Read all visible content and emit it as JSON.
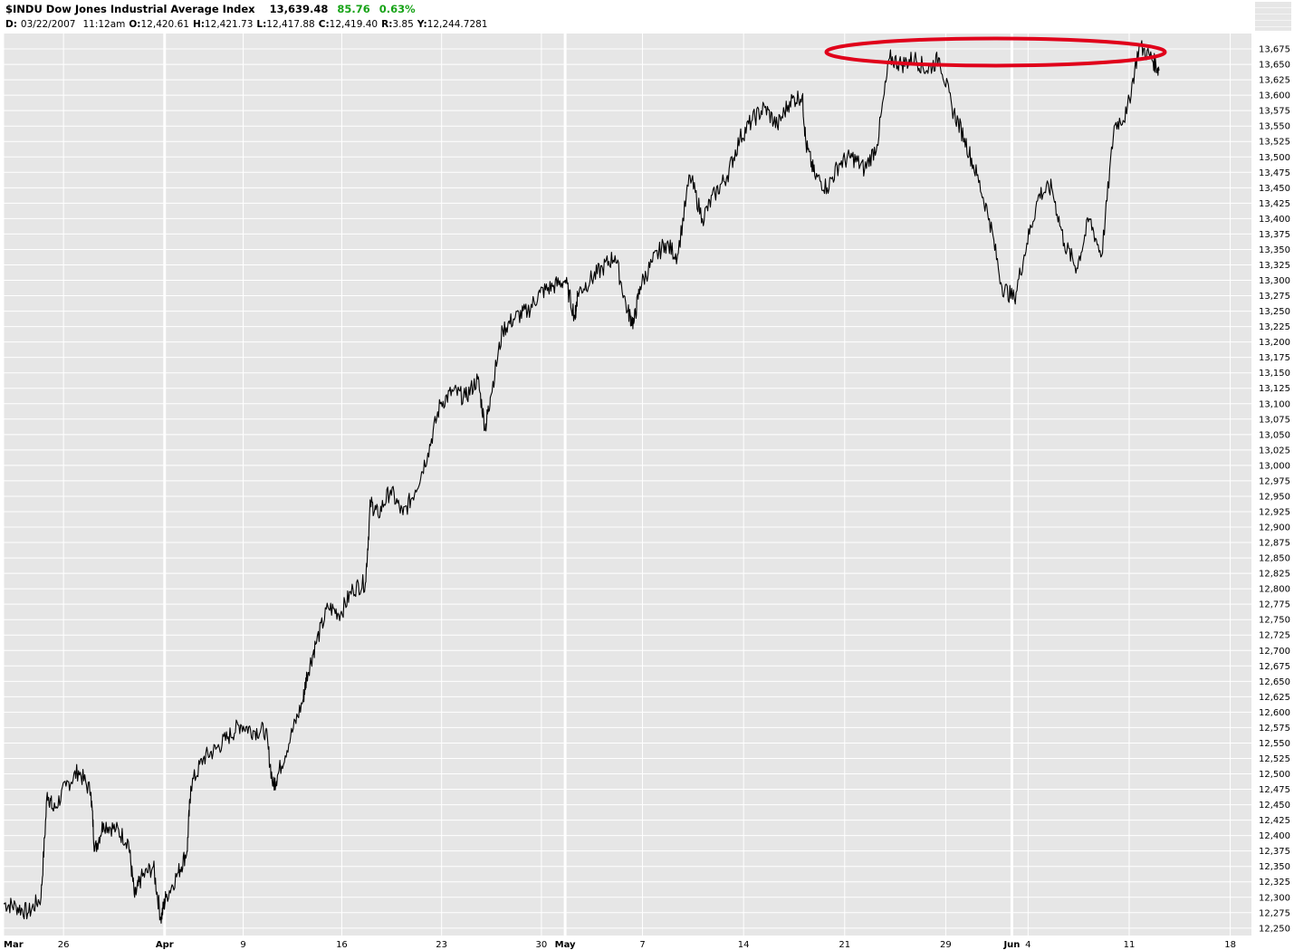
{
  "header": {
    "symbol_title": "$INDU Dow Jones Industrial Average Index",
    "last": "13,639.48",
    "change": "85.76",
    "change_pct": "0.63%",
    "change_color": "#17a317",
    "info_prefix": "D:",
    "info_date": "03/22/2007",
    "info_time": "11:12am",
    "open_label": "O:",
    "open": "12,420.61",
    "high_label": "H:",
    "high": "12,421.73",
    "low_label": "L:",
    "low": "12,417.88",
    "close_label": "C:",
    "close": "12,419.40",
    "range_label": "R:",
    "range": "3.85",
    "y_label": "Y:",
    "y": "12,244.7281"
  },
  "chart_data": {
    "type": "line",
    "series": [
      {
        "values": [
          [
            0,
            12290
          ],
          [
            1,
            12285
          ],
          [
            2,
            12275
          ],
          [
            3,
            12300
          ],
          [
            3.5,
            12470
          ],
          [
            4,
            12440
          ],
          [
            5,
            12480
          ],
          [
            6,
            12505
          ],
          [
            7,
            12470
          ],
          [
            7.3,
            12375
          ],
          [
            8,
            12420
          ],
          [
            9,
            12410
          ],
          [
            10,
            12390
          ],
          [
            10.5,
            12300
          ],
          [
            11,
            12330
          ],
          [
            12,
            12350
          ],
          [
            12.6,
            12265
          ],
          [
            13,
            12300
          ],
          [
            14,
            12340
          ],
          [
            14.7,
            12375
          ],
          [
            15,
            12480
          ],
          [
            16,
            12525
          ],
          [
            17,
            12540
          ],
          [
            18,
            12560
          ],
          [
            19,
            12580
          ],
          [
            20,
            12570
          ],
          [
            21,
            12570
          ],
          [
            21.6,
            12480
          ],
          [
            22,
            12500
          ],
          [
            23,
            12560
          ],
          [
            24,
            12620
          ],
          [
            24.3,
            12660
          ],
          [
            25,
            12710
          ],
          [
            26,
            12770
          ],
          [
            27,
            12760
          ],
          [
            28,
            12800
          ],
          [
            29,
            12810
          ],
          [
            29.4,
            12940
          ],
          [
            30,
            12920
          ],
          [
            31,
            12960
          ],
          [
            32,
            12920
          ],
          [
            33,
            12960
          ],
          [
            34,
            13020
          ],
          [
            35,
            13100
          ],
          [
            36,
            13120
          ],
          [
            37,
            13110
          ],
          [
            38,
            13140
          ],
          [
            38.6,
            13060
          ],
          [
            39,
            13110
          ],
          [
            40,
            13220
          ],
          [
            41,
            13240
          ],
          [
            42,
            13250
          ],
          [
            43,
            13280
          ],
          [
            44,
            13290
          ],
          [
            45,
            13300
          ],
          [
            45.8,
            13240
          ],
          [
            46,
            13280
          ],
          [
            47,
            13300
          ],
          [
            48,
            13320
          ],
          [
            49,
            13340
          ],
          [
            50,
            13250
          ],
          [
            50.5,
            13230
          ],
          [
            51,
            13290
          ],
          [
            52,
            13330
          ],
          [
            53,
            13360
          ],
          [
            54,
            13340
          ],
          [
            55,
            13470
          ],
          [
            56,
            13400
          ],
          [
            57,
            13440
          ],
          [
            58,
            13470
          ],
          [
            59,
            13530
          ],
          [
            60,
            13560
          ],
          [
            61,
            13580
          ],
          [
            62,
            13550
          ],
          [
            63,
            13590
          ],
          [
            64,
            13600
          ],
          [
            64.3,
            13520
          ],
          [
            65,
            13470
          ],
          [
            66,
            13450
          ],
          [
            67,
            13490
          ],
          [
            68,
            13500
          ],
          [
            69,
            13480
          ],
          [
            70,
            13520
          ],
          [
            71,
            13660
          ],
          [
            72,
            13650
          ],
          [
            73,
            13660
          ],
          [
            74,
            13640
          ],
          [
            75,
            13660
          ],
          [
            76,
            13580
          ],
          [
            77,
            13530
          ],
          [
            78,
            13470
          ],
          [
            79,
            13400
          ],
          [
            80,
            13290
          ],
          [
            81,
            13270
          ],
          [
            82,
            13360
          ],
          [
            83,
            13440
          ],
          [
            84,
            13450
          ],
          [
            85,
            13360
          ],
          [
            86,
            13320
          ],
          [
            87,
            13400
          ],
          [
            88,
            13340
          ],
          [
            89,
            13550
          ],
          [
            90,
            13570
          ],
          [
            91,
            13680
          ],
          [
            92,
            13660
          ],
          [
            92.6,
            13640
          ]
        ]
      }
    ],
    "x_tick_labels": [
      {
        "x": 0,
        "label": "Mar",
        "bold": true
      },
      {
        "x": 4.8,
        "label": "26",
        "bold": false
      },
      {
        "x": 12.9,
        "label": "Apr",
        "bold": true
      },
      {
        "x": 19.2,
        "label": "9",
        "bold": false
      },
      {
        "x": 27.1,
        "label": "16",
        "bold": false
      },
      {
        "x": 35.1,
        "label": "23",
        "bold": false
      },
      {
        "x": 43.1,
        "label": "30",
        "bold": false
      },
      {
        "x": 45.0,
        "label": "May",
        "bold": true
      },
      {
        "x": 51.2,
        "label": "7",
        "bold": false
      },
      {
        "x": 59.3,
        "label": "14",
        "bold": false
      },
      {
        "x": 67.4,
        "label": "21",
        "bold": false
      },
      {
        "x": 75.5,
        "label": "29",
        "bold": false
      },
      {
        "x": 80.8,
        "label": "Jun",
        "bold": true
      },
      {
        "x": 82.1,
        "label": "4",
        "bold": false
      },
      {
        "x": 90.2,
        "label": "11",
        "bold": false
      },
      {
        "x": 98.3,
        "label": "18",
        "bold": false
      }
    ],
    "month_boundaries": [
      12.9,
      45.0,
      80.8
    ],
    "xlim": [
      0,
      100
    ],
    "y_ticks": [
      12250,
      12275,
      12300,
      12325,
      12350,
      12375,
      12400,
      12425,
      12450,
      12475,
      12500,
      12525,
      12550,
      12575,
      12600,
      12625,
      12650,
      12675,
      12700,
      12725,
      12750,
      12775,
      12800,
      12825,
      12850,
      12875,
      12900,
      12925,
      12950,
      12975,
      13000,
      13025,
      13050,
      13075,
      13100,
      13125,
      13150,
      13175,
      13200,
      13225,
      13250,
      13275,
      13300,
      13325,
      13350,
      13375,
      13400,
      13425,
      13450,
      13475,
      13500,
      13525,
      13550,
      13575,
      13600,
      13625,
      13650,
      13675
    ],
    "ylim": [
      12238,
      13700
    ],
    "grid": true,
    "annotation": {
      "type": "ellipse",
      "color": "#e0001a",
      "center_x": 79.5,
      "center_y": 13670
    },
    "colors": {
      "background": "#e6e6e6",
      "grid": "#ffffff",
      "line": "#000000"
    }
  }
}
